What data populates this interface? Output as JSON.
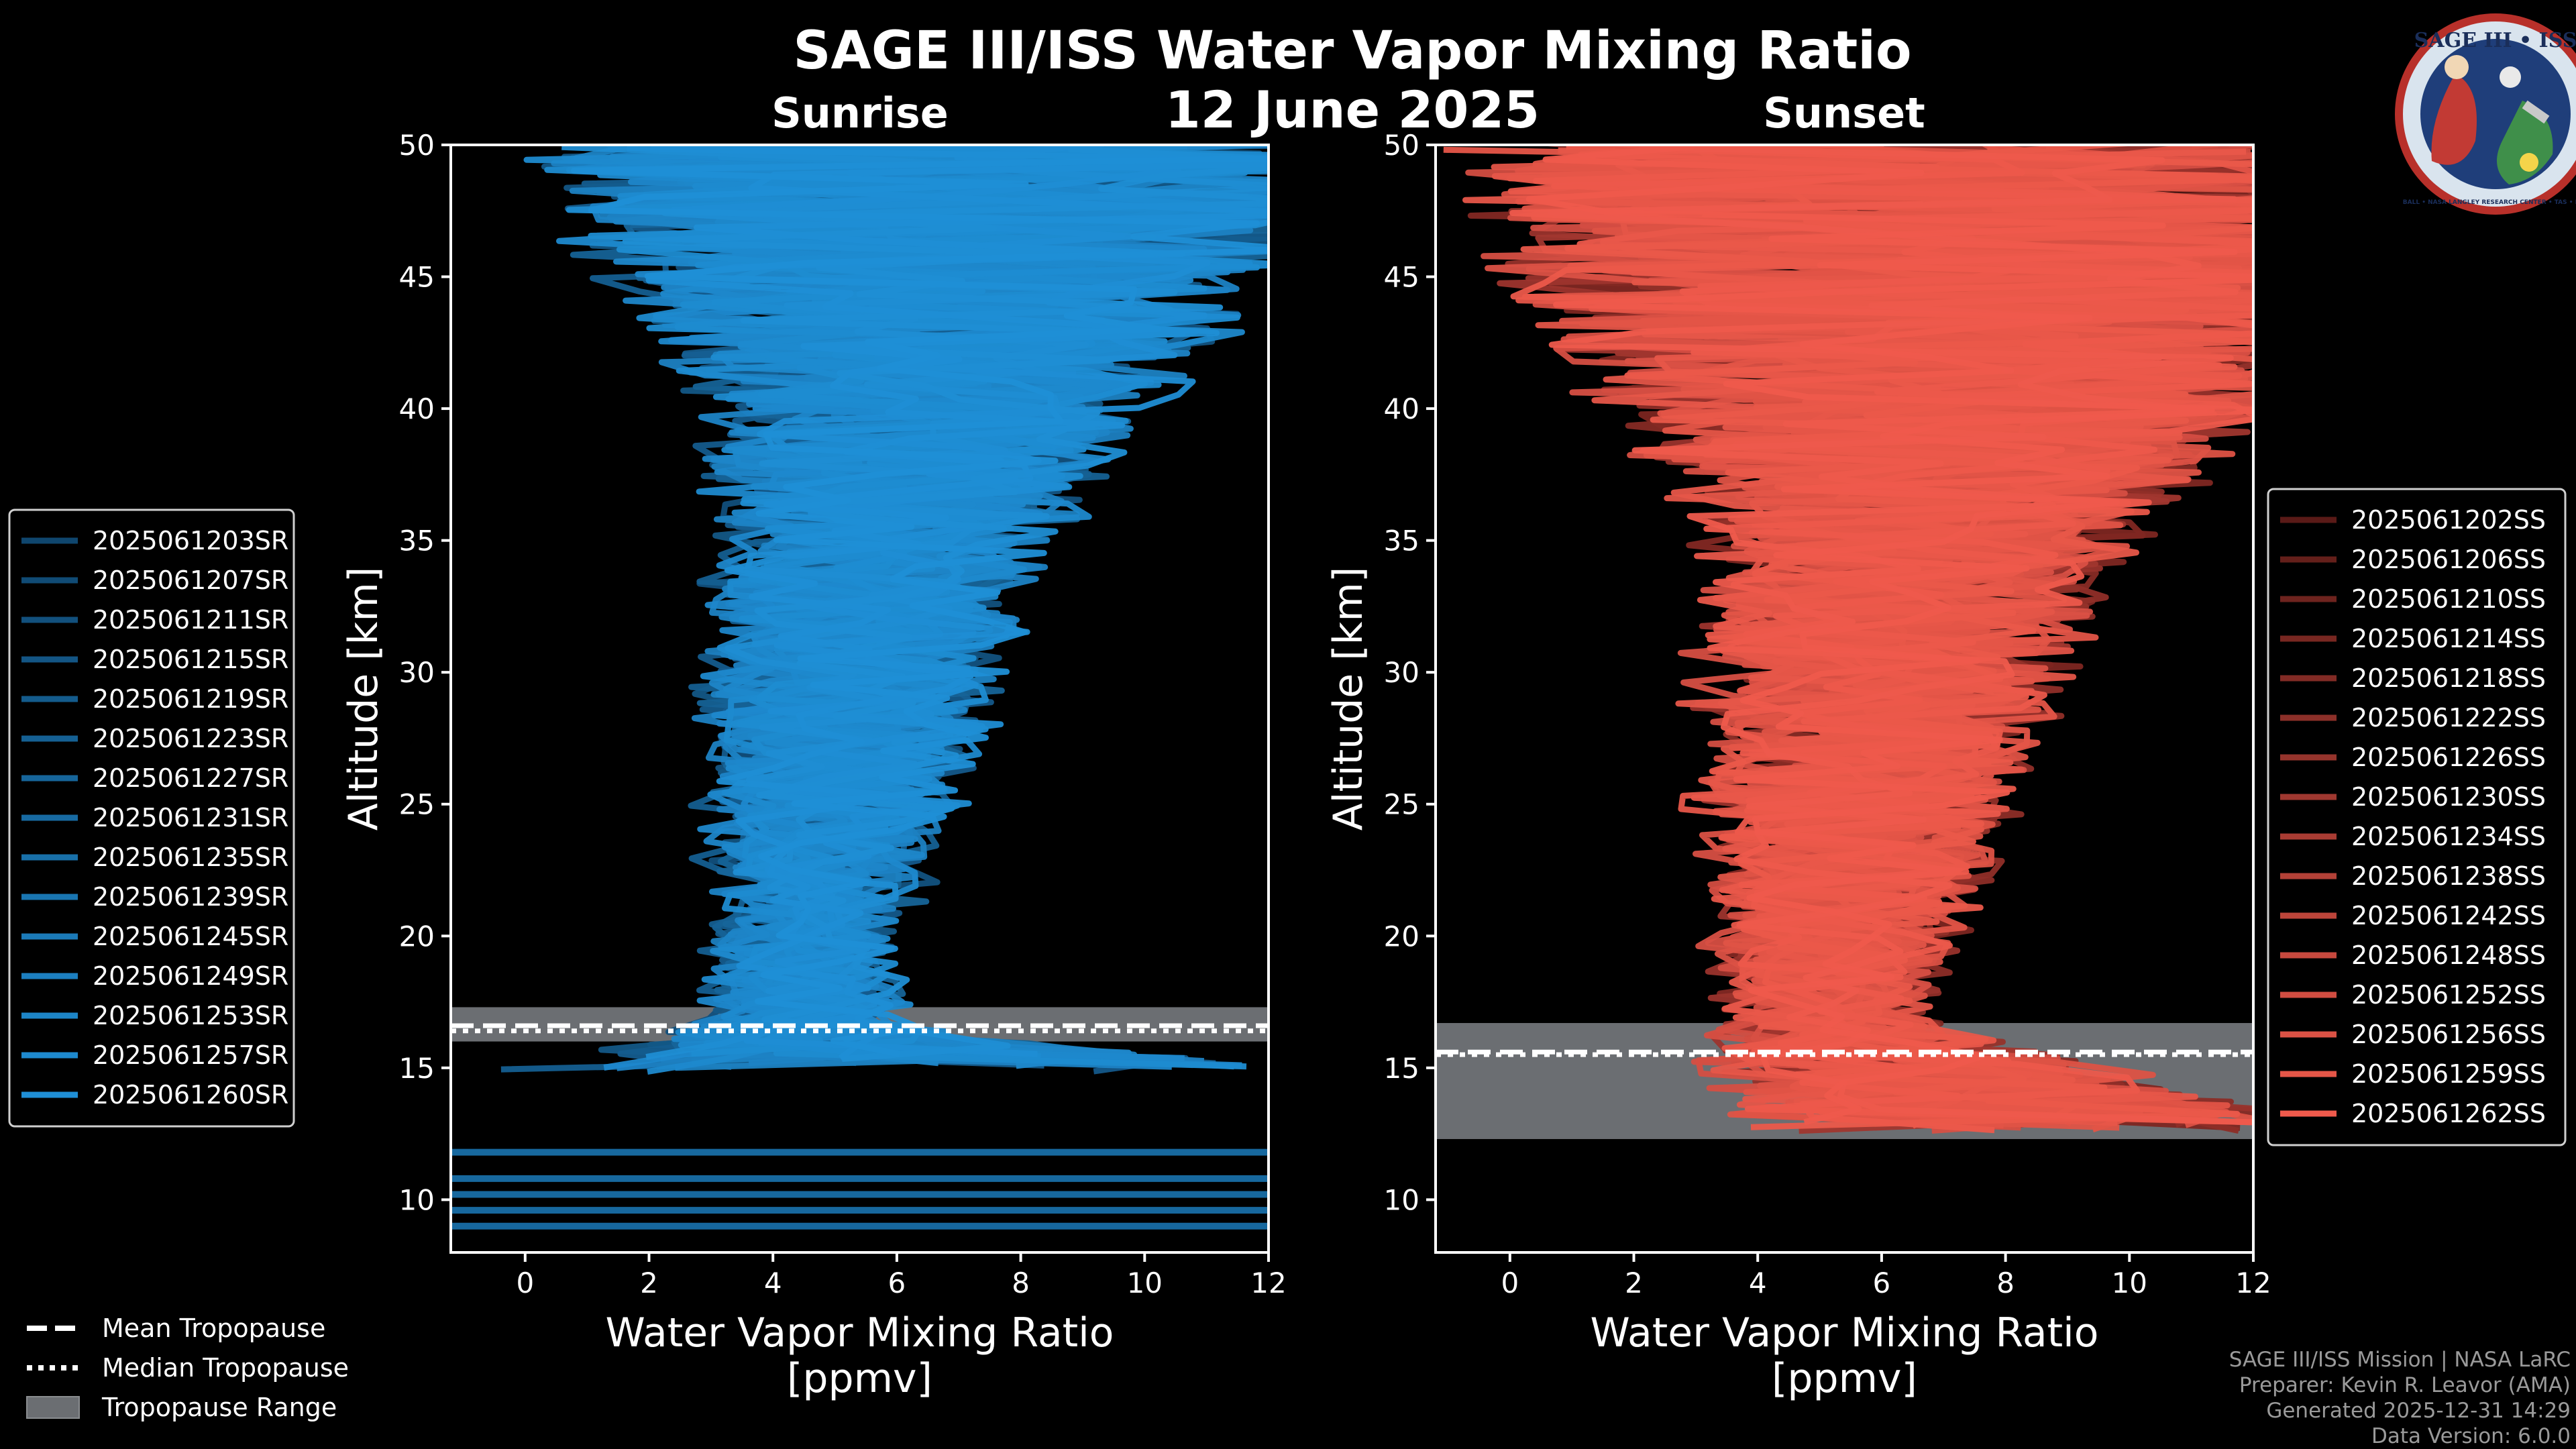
{
  "figure": {
    "title": "SAGE III/ISS Water Vapor Mixing Ratio",
    "date": "12 June 2025",
    "logo": {
      "top_text": "SAGE III • ISS",
      "ring_text": "BALL • NASA LANGLEY RESEARCH CENTER • TAS • ESA"
    },
    "credits": [
      "SAGE III/ISS Mission | NASA LaRC",
      "Preparer: Kevin R. Leavor (AMA)",
      "Generated 2025-12-31 14:29",
      "Data Version: 6.0.0"
    ],
    "tropopause_legend": [
      {
        "label": "Mean Tropopause",
        "style": "dashed"
      },
      {
        "label": "Median Tropopause",
        "style": "dotted"
      },
      {
        "label": "Tropopause Range",
        "style": "patch"
      }
    ],
    "colors": {
      "sunrise": "#1f8fd6",
      "sunset": "#ef5a4c",
      "range": "#6b6e72",
      "background": "#000000"
    }
  },
  "chart_data": [
    {
      "type": "line",
      "panel": "sunrise",
      "title": "Sunrise",
      "xlabel": "Water Vapor Mixing Ratio\n[ppmv]",
      "ylabel": "Altitude [km]",
      "xlim": [
        -1.2,
        12
      ],
      "ylim": [
        8,
        50
      ],
      "xticks": [
        0,
        2,
        4,
        6,
        8,
        10,
        12
      ],
      "yticks": [
        10,
        15,
        20,
        25,
        30,
        35,
        40,
        45,
        50
      ],
      "tropopause": {
        "mean": 16.6,
        "median": 16.4,
        "range": [
          16.0,
          17.3
        ]
      },
      "low_level_horizontal_km": [
        11.8,
        10.8,
        10.2,
        9.6,
        9.0
      ],
      "series_names": [
        "2025061203SR",
        "2025061207SR",
        "2025061211SR",
        "2025061215SR",
        "2025061219SR",
        "2025061223SR",
        "2025061227SR",
        "2025061231SR",
        "2025061235SR",
        "2025061239SR",
        "2025061245SR",
        "2025061249SR",
        "2025061253SR",
        "2025061257SR",
        "2025061260SR"
      ],
      "envelope": [
        {
          "alt": 15,
          "center": 6.5,
          "spread": 7.0
        },
        {
          "alt": 16,
          "center": 5.0,
          "spread": 3.0
        },
        {
          "alt": 17,
          "center": 4.6,
          "spread": 1.5
        },
        {
          "alt": 20,
          "center": 4.6,
          "spread": 1.3
        },
        {
          "alt": 25,
          "center": 4.9,
          "spread": 2.0
        },
        {
          "alt": 30,
          "center": 5.3,
          "spread": 2.4
        },
        {
          "alt": 35,
          "center": 5.8,
          "spread": 2.8
        },
        {
          "alt": 40,
          "center": 6.5,
          "spread": 3.8
        },
        {
          "alt": 45,
          "center": 6.8,
          "spread": 6.0
        },
        {
          "alt": 50,
          "center": 7.0,
          "spread": 8.0
        }
      ]
    },
    {
      "type": "line",
      "panel": "sunset",
      "title": "Sunset",
      "xlabel": "Water Vapor Mixing Ratio\n[ppmv]",
      "ylabel": "Altitude [km]",
      "xlim": [
        -1.2,
        12
      ],
      "ylim": [
        8,
        50
      ],
      "xticks": [
        0,
        2,
        4,
        6,
        8,
        10,
        12
      ],
      "yticks": [
        10,
        15,
        20,
        25,
        30,
        35,
        40,
        45,
        50
      ],
      "tropopause": {
        "mean": 15.6,
        "median": 15.5,
        "range": [
          12.3,
          16.7
        ]
      },
      "low_level_horizontal_km": [],
      "series_names": [
        "2025061202SS",
        "2025061206SS",
        "2025061210SS",
        "2025061214SS",
        "2025061218SS",
        "2025061222SS",
        "2025061226SS",
        "2025061230SS",
        "2025061234SS",
        "2025061238SS",
        "2025061242SS",
        "2025061248SS",
        "2025061252SS",
        "2025061256SS",
        "2025061259SS",
        "2025061262SS"
      ],
      "envelope": [
        {
          "alt": 13,
          "center": 8.5,
          "spread": 5.0
        },
        {
          "alt": 15,
          "center": 6.5,
          "spread": 3.5
        },
        {
          "alt": 17,
          "center": 4.9,
          "spread": 1.5
        },
        {
          "alt": 20,
          "center": 5.3,
          "spread": 1.9
        },
        {
          "alt": 25,
          "center": 5.6,
          "spread": 2.5
        },
        {
          "alt": 30,
          "center": 6.0,
          "spread": 3.0
        },
        {
          "alt": 35,
          "center": 6.6,
          "spread": 3.6
        },
        {
          "alt": 40,
          "center": 7.0,
          "spread": 6.0
        },
        {
          "alt": 45,
          "center": 7.0,
          "spread": 8.0
        },
        {
          "alt": 50,
          "center": 7.0,
          "spread": 8.5
        }
      ]
    }
  ]
}
